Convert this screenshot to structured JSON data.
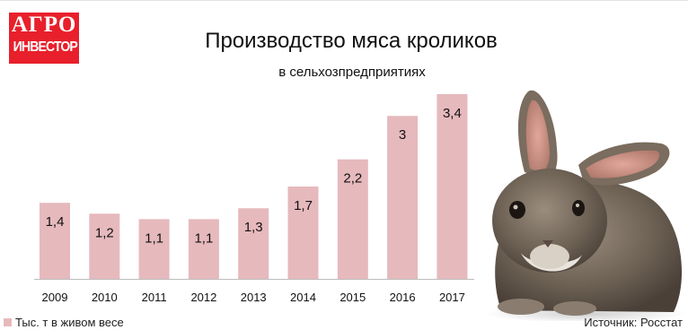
{
  "logo": {
    "line1": "АГРО",
    "line2": "ИНВЕСТОР"
  },
  "colors": {
    "bar": "#e6b9bd",
    "logo_red": "#e8202b",
    "text": "#111111"
  },
  "chart_data": {
    "type": "bar",
    "title": "Производство мяса кроликов",
    "subtitle": "в сельхозпредприятиях",
    "categories": [
      "2009",
      "2010",
      "2011",
      "2012",
      "2013",
      "2014",
      "2015",
      "2016",
      "2017"
    ],
    "values": [
      1.4,
      1.2,
      1.1,
      1.1,
      1.3,
      1.7,
      2.2,
      3.0,
      3.4
    ],
    "value_labels": [
      "1,4",
      "1,2",
      "1,1",
      "1,1",
      "1,3",
      "1,7",
      "2,2",
      "3",
      "3,4"
    ],
    "series": [
      {
        "name": "Тыс. т в живом весе"
      }
    ],
    "legend_position": "bottom-left",
    "source": "Источник: Росстат",
    "ylim": [
      0,
      3.4
    ],
    "grid": false
  }
}
